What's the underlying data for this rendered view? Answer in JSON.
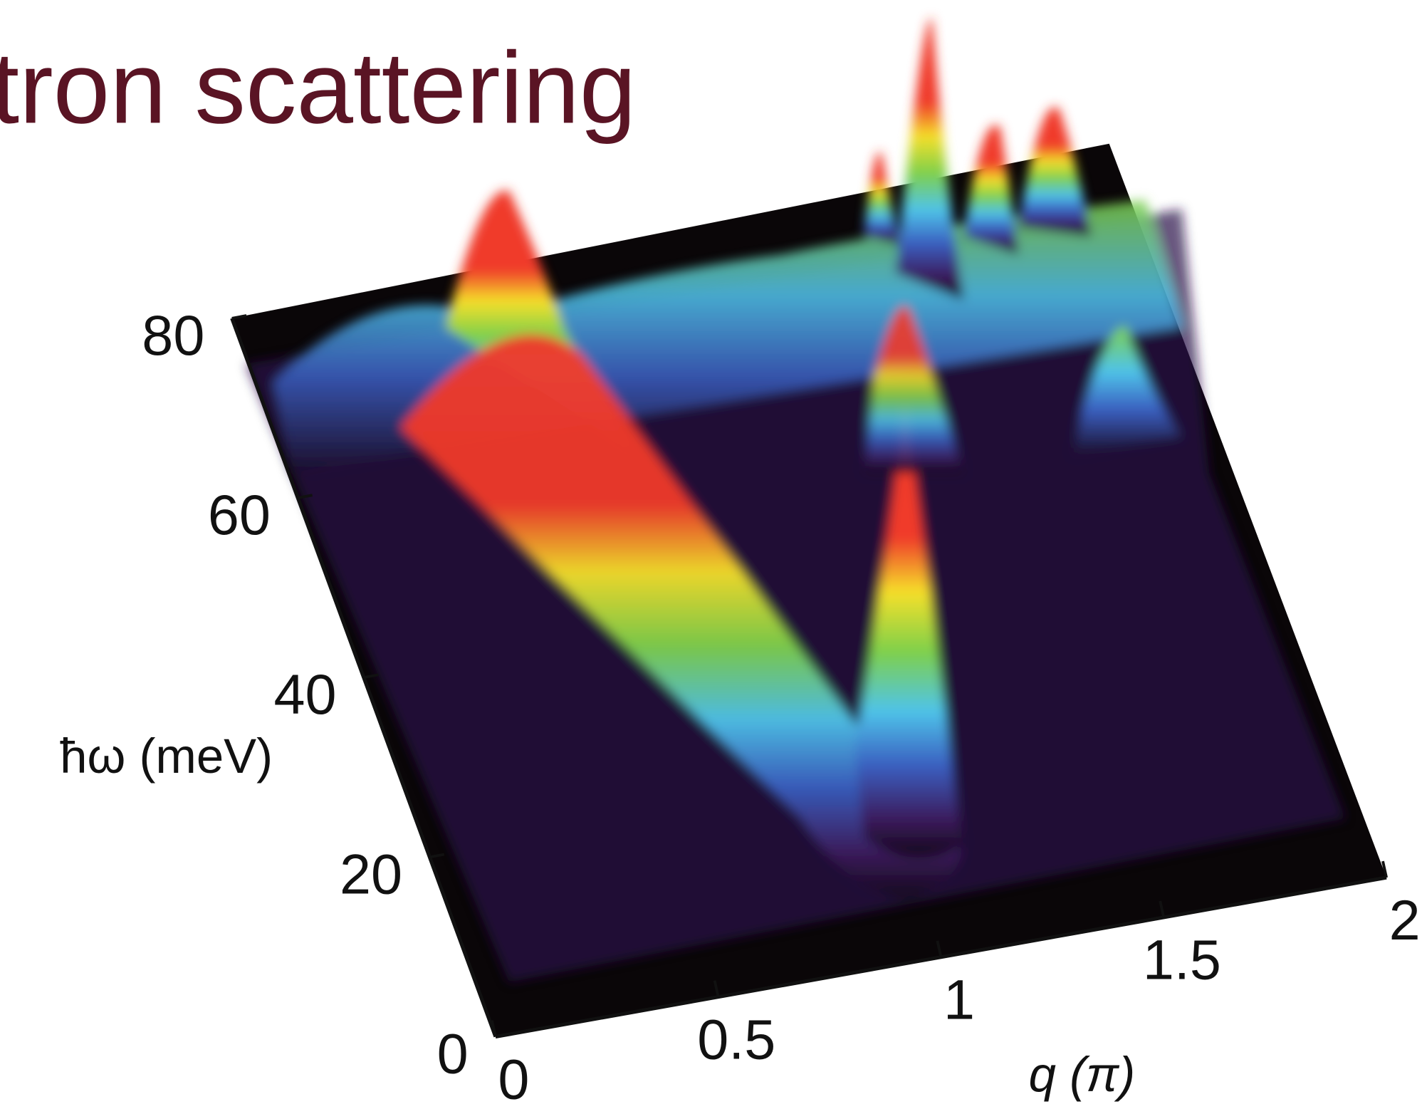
{
  "chart_data": {
    "type": "surface",
    "title": "tron scattering",
    "x_label": "q (π)",
    "y_label": "ħω (meV)",
    "xlim": [
      0,
      2
    ],
    "xticks": [
      0,
      0.5,
      1,
      1.5,
      2
    ],
    "ylim": [
      0,
      80
    ],
    "yticks": [
      0,
      20,
      40,
      60,
      80
    ]
  }
}
